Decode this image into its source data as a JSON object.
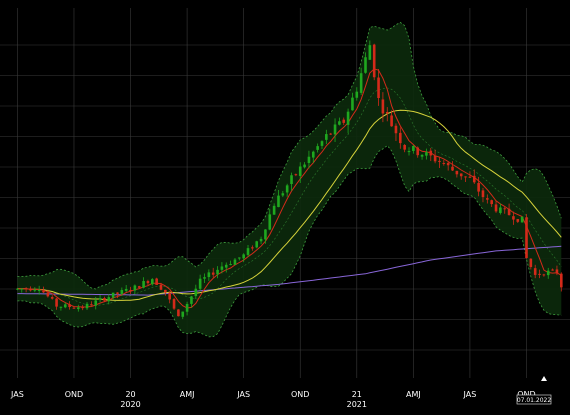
{
  "chart_data": {
    "type": "candlestick",
    "title": "",
    "xlabel": "",
    "ylabel": "",
    "background": "#000000",
    "grid": true,
    "x_domain": [
      -4,
      127
    ],
    "y_range": [
      0,
      1
    ],
    "colors": {
      "grid": "#3a3a3a",
      "up": "#1fa81f",
      "down": "#d42a1a",
      "band_fill": "#0c2a0c",
      "band_edge": "#3fa03f",
      "band_mid": "#2e7d2e",
      "ma_short": "#d42a1a",
      "ma_medium": "#d6d23a",
      "ma_long": "#8866d8",
      "tick_text": "#ffffff"
    },
    "x_tick_labels": [
      {
        "x": 0,
        "label": "JAS"
      },
      {
        "x": 13,
        "label": "OND"
      },
      {
        "x": 26,
        "label": "20",
        "year": "2020"
      },
      {
        "x": 39,
        "label": "AMJ"
      },
      {
        "x": 52,
        "label": "JAS"
      },
      {
        "x": 65,
        "label": "OND"
      },
      {
        "x": 78,
        "label": "21",
        "year": "2021"
      },
      {
        "x": 91,
        "label": "AMJ"
      },
      {
        "x": 104,
        "label": "JAS"
      },
      {
        "x": 117,
        "label": "OND"
      }
    ],
    "last_date": "07.01.2022",
    "anchors": [
      [
        0,
        0.2
      ],
      [
        5,
        0.205
      ],
      [
        9,
        0.145
      ],
      [
        15,
        0.14
      ],
      [
        20,
        0.17
      ],
      [
        27,
        0.205
      ],
      [
        31,
        0.235
      ],
      [
        34,
        0.19
      ],
      [
        37,
        0.105
      ],
      [
        42,
        0.225
      ],
      [
        47,
        0.275
      ],
      [
        52,
        0.31
      ],
      [
        56,
        0.37
      ],
      [
        59,
        0.48
      ],
      [
        63,
        0.56
      ],
      [
        67,
        0.63
      ],
      [
        71,
        0.7
      ],
      [
        75,
        0.75
      ],
      [
        78,
        0.86
      ],
      [
        81,
        1.0
      ],
      [
        83,
        0.82
      ],
      [
        86,
        0.74
      ],
      [
        89,
        0.665
      ],
      [
        93,
        0.645
      ],
      [
        97,
        0.62
      ],
      [
        100,
        0.59
      ],
      [
        104,
        0.56
      ],
      [
        108,
        0.485
      ],
      [
        111,
        0.455
      ],
      [
        114,
        0.44
      ],
      [
        116,
        0.425
      ],
      [
        117,
        0.3
      ],
      [
        119,
        0.245
      ],
      [
        121,
        0.255
      ],
      [
        124,
        0.255
      ],
      [
        125,
        0.21
      ]
    ],
    "ma_long_anchors": [
      [
        0,
        0.185
      ],
      [
        30,
        0.18
      ],
      [
        60,
        0.215
      ],
      [
        80,
        0.25
      ],
      [
        95,
        0.295
      ],
      [
        110,
        0.325
      ],
      [
        125,
        0.34
      ]
    ],
    "candles": []
  }
}
